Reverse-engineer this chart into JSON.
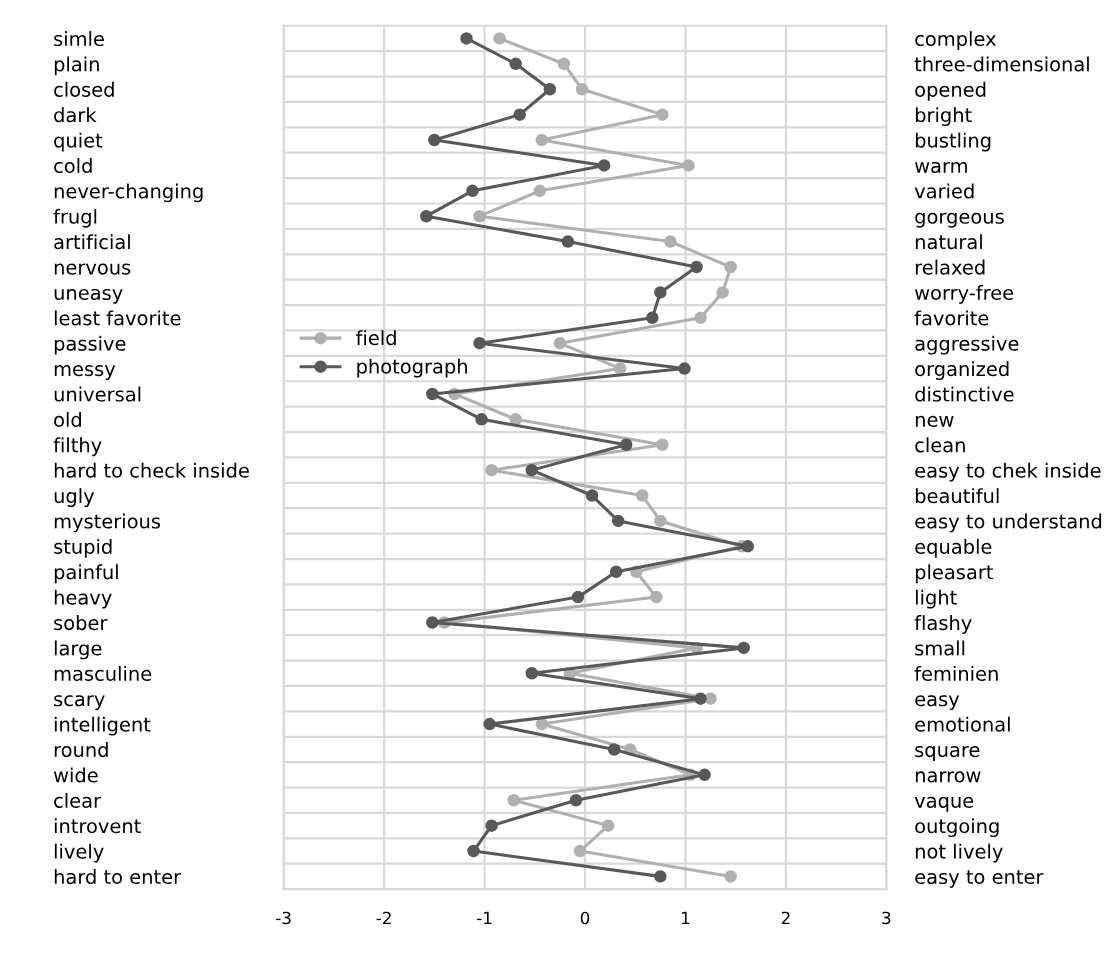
{
  "chart_data": {
    "type": "line",
    "orientation": "horizontal",
    "categories": [
      "simle",
      "plain",
      "closed",
      "dark",
      "quiet",
      "cold",
      "never-changing",
      "frugl",
      "artificial",
      "nervous",
      "uneasy",
      "least favorite",
      "passive",
      "messy",
      "universal",
      "old",
      "filthy",
      "hard to check inside",
      "ugly",
      "mysterious",
      "stupid",
      "painful",
      "heavy",
      "sober",
      "large",
      "masculine",
      "scary",
      "intelligent",
      "round",
      "wide",
      "clear",
      "introvent",
      "lively",
      "hard to enter"
    ],
    "y2_categories": [
      "complex",
      "three-dimensional",
      "opened",
      "bright",
      "bustling",
      "warm",
      "varied",
      "gorgeous",
      "natural",
      "relaxed",
      "worry-free",
      "favorite",
      "aggressive",
      "organized",
      "distinctive",
      "new",
      "clean",
      "easy to chek inside",
      "beautiful",
      "easy to understand",
      "equable",
      "pleasart",
      "light",
      "flashy",
      "small",
      "feminien",
      "easy",
      "emotional",
      "square",
      "narrow",
      "vaque",
      "outgoing",
      "not lively",
      "easy to enter"
    ],
    "series": [
      {
        "name": "field",
        "color": "#b0b0b0",
        "values": [
          -0.85,
          -0.21,
          -0.03,
          0.77,
          -0.43,
          1.03,
          -0.45,
          -1.05,
          0.85,
          1.45,
          1.37,
          1.15,
          -0.25,
          0.35,
          -1.3,
          -0.69,
          0.77,
          -0.93,
          0.57,
          0.75,
          1.56,
          0.51,
          0.71,
          -1.4,
          1.11,
          -0.15,
          1.25,
          -0.43,
          0.45,
          1.05,
          -0.71,
          0.23,
          -0.05,
          1.45
        ]
      },
      {
        "name": "photograph",
        "color": "#595959",
        "values": [
          -1.18,
          -0.69,
          -0.35,
          -0.65,
          -1.5,
          0.19,
          -1.12,
          -1.58,
          -0.17,
          1.11,
          0.75,
          0.67,
          -1.05,
          0.99,
          -1.52,
          -1.03,
          0.41,
          -0.53,
          0.07,
          0.33,
          1.62,
          0.31,
          -0.07,
          -1.52,
          1.58,
          -0.53,
          1.15,
          -0.95,
          0.29,
          1.19,
          -0.09,
          -0.93,
          -1.11,
          0.75
        ]
      }
    ],
    "xlim": [
      -3,
      3
    ],
    "xticks": [
      -3,
      -2,
      -1,
      0,
      1,
      2,
      3
    ],
    "marker": "circle",
    "line_style": "solid",
    "grid": true,
    "legend": "center left"
  }
}
